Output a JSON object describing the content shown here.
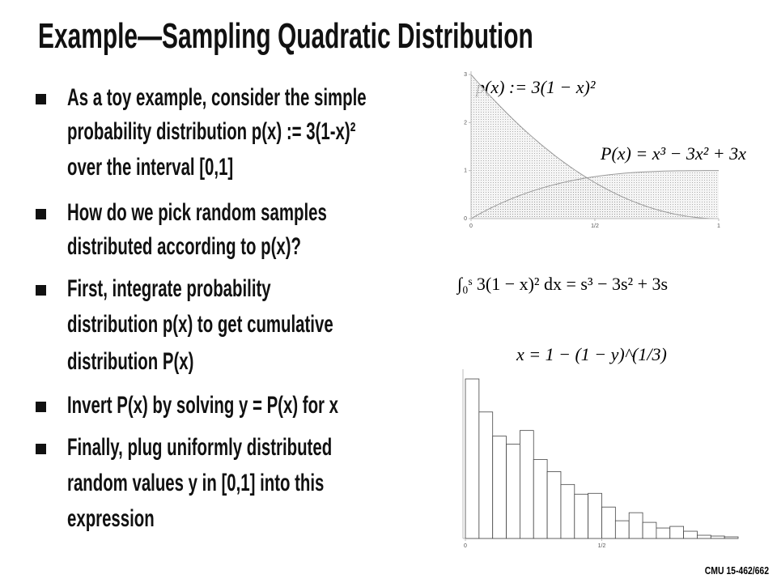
{
  "title": "Example—Sampling Quadratic Distribution",
  "bullets": [
    [
      "As a toy example, consider the simple",
      "probability distribution p(x) := 3(1-x)²",
      "over the interval [0,1]"
    ],
    [
      "How do we pick random samples",
      "distributed according to p(x)?"
    ],
    [
      "First, integrate probability",
      "distribution p(x) to get cumulative",
      "distribution P(x)"
    ],
    [
      "Invert P(x) by solving y = P(x) for x"
    ],
    [
      "Finally, plug uniformly distributed",
      "random values y in [0,1] into this",
      "expression"
    ]
  ],
  "plot": {
    "pdf_label": "p(x) := 3(1 − x)²",
    "cdf_label": "P(x) = x³ − 3x² + 3x",
    "xlim": [
      0,
      1
    ],
    "ylim": [
      0,
      3
    ],
    "xticks": [
      0,
      {
        "value": 0.5,
        "label": "1/2"
      },
      1
    ],
    "yticks": [
      0,
      1,
      2,
      3
    ]
  },
  "integral": "∫₀ˢ 3(1 − x)² dx = s³ − 3s² + 3s",
  "inverse": "x = 1 − (1 − y)^(1/3)",
  "histogram": {
    "bins": [
      0,
      0.05,
      0.1,
      0.15,
      0.2,
      0.25,
      0.3,
      0.35,
      0.4,
      0.45,
      0.5,
      0.55,
      0.6,
      0.65,
      0.7,
      0.75,
      0.8,
      0.85,
      0.9,
      0.95,
      1
    ],
    "values": [
      198,
      157,
      127,
      117,
      134,
      98,
      83,
      67,
      55,
      56,
      39,
      22,
      32,
      20,
      13,
      15,
      9,
      4,
      3,
      2
    ],
    "xlim": [
      0,
      1
    ],
    "ylim": [
      0,
      200
    ],
    "xticks": [
      0,
      {
        "value": 0.5,
        "label": "1/2"
      }
    ]
  },
  "footer": "CMU 15-462/662"
}
